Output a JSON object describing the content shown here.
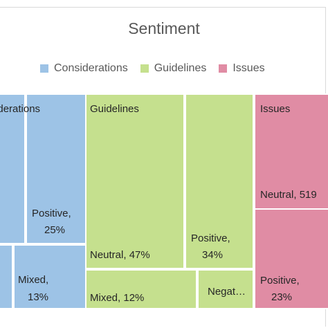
{
  "chart_data": {
    "type": "treemap",
    "title": "Sentiment",
    "legend_position": "top",
    "series": [
      {
        "name": "Considerations",
        "color": "#9dc3e6",
        "show_label": false,
        "children": [
          {
            "label": "",
            "value": 45,
            "visible_text": []
          },
          {
            "label": "Positive, 25%",
            "value": 25,
            "visible_text": [
              "Positive,",
              "25%"
            ]
          },
          {
            "label": "",
            "value": 17,
            "visible_text": []
          },
          {
            "label": "Mixed, 13%",
            "value": 13,
            "visible_text": [
              "Mixed,",
              "13%"
            ]
          }
        ]
      },
      {
        "name": "Guidelines",
        "color": "#c5e08e",
        "show_label": true,
        "children": [
          {
            "label": "Neutral, 47%",
            "value": 47,
            "visible_text": [
              "Neutral, 47%"
            ]
          },
          {
            "label": "Positive, 34%",
            "value": 34,
            "visible_text": [
              "Positive,",
              "34%"
            ]
          },
          {
            "label": "Mixed, 12%",
            "value": 12,
            "visible_text": [
              "Mixed, 12%"
            ]
          },
          {
            "label": "Negat",
            "value": 7,
            "visible_text": [
              "Negat…"
            ]
          }
        ]
      },
      {
        "name": "Issues",
        "color": "#e08ca4",
        "show_label": true,
        "children": [
          {
            "label": "Neutral, 51%",
            "value": 51,
            "visible_text": [
              "Neutral, 519"
            ]
          },
          {
            "label": "Positive, 23%",
            "value": 23,
            "visible_text": [
              "Positive,",
              "23%"
            ]
          }
        ]
      }
    ]
  }
}
